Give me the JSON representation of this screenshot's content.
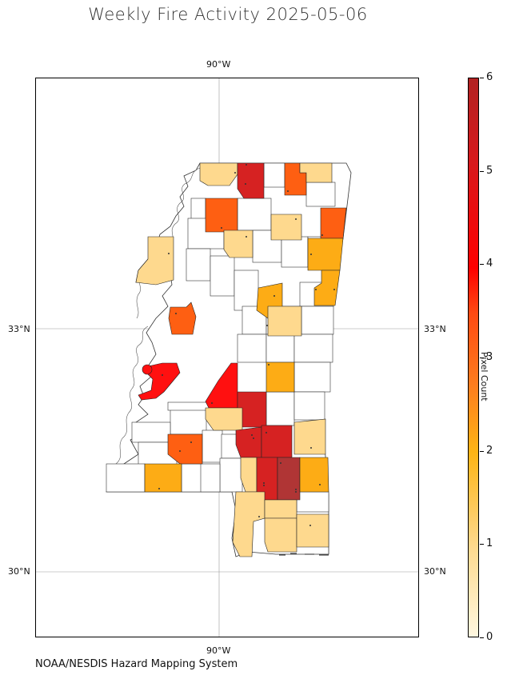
{
  "title": "Weekly Fire Activity 2025-05-06",
  "source": "NOAA/NESDIS Hazard Mapping System",
  "axes": {
    "lon_top": "90°W",
    "lon_bottom": "90°W",
    "lat_33_left": "33°N",
    "lat_33_right": "33°N",
    "lat_30_left": "30°N",
    "lat_30_right": "30°N"
  },
  "colorbar": {
    "label": "Pixel Count",
    "min": 0,
    "max": 6,
    "ticks": [
      "0",
      "1",
      "2",
      "3",
      "4",
      "5",
      "6"
    ]
  },
  "colors": {
    "1": "#fed98e",
    "2": "#fdac15",
    "3": "#fe5f12",
    "4": "#ff1010",
    "5": "#d62222",
    "6": "#b03535",
    "none": "#ffffff"
  },
  "chart_data": {
    "type": "choropleth",
    "value_scale": [
      0,
      6
    ],
    "grid": true
  }
}
